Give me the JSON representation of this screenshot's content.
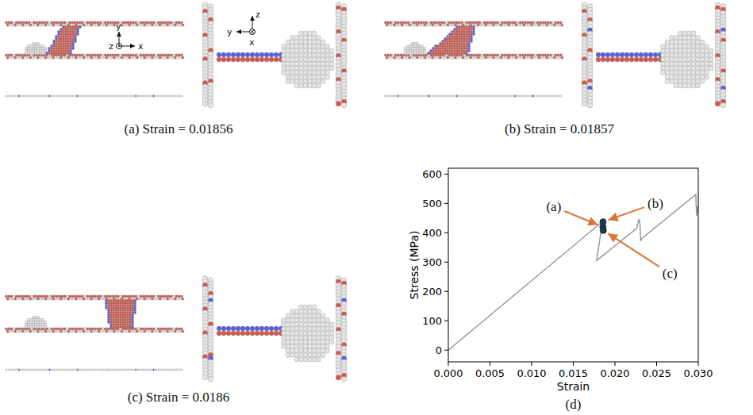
{
  "panels": [
    {
      "caption": "(a) Strain = 0.01856"
    },
    {
      "caption": "(b) Strain = 0.01857"
    },
    {
      "caption": "(c) Strain = 0.0186"
    }
  ],
  "axis_triads": {
    "left": {
      "up": "y",
      "out": "z",
      "right": "x"
    },
    "right": {
      "up": "z",
      "left": "y",
      "in": "x"
    }
  },
  "chart_data": {
    "type": "line",
    "caption": "(d)",
    "x_label": "Strain",
    "y_label": "Stress (MPa)",
    "x": [
      0,
      0.0185,
      0.0178,
      0.0226,
      0.0229,
      0.023,
      0.0231,
      0.0232,
      0.0297,
      0.0298,
      0.0299,
      0.03
    ],
    "series": [
      {
        "color": "#999999",
        "values": [
          0,
          438,
          305,
          415,
          448,
          430,
          372,
          380,
          530,
          458,
          490,
          470
        ]
      }
    ],
    "xlim": [
      0,
      0.03
    ],
    "ylim": [
      -40,
      620
    ],
    "xticks": [
      {
        "value": 0,
        "label": "0.000"
      },
      0.005,
      {
        "value": 0.01,
        "label": "0.010"
      },
      0.015,
      {
        "value": 0.02,
        "label": "0.020"
      },
      0.025,
      {
        "value": 0.03,
        "label": "0.030"
      }
    ],
    "yticks": [
      0,
      100,
      200,
      300,
      400,
      500,
      600
    ],
    "annotations": [
      {
        "text": "(a)",
        "x": 0.01856,
        "y": 420
      },
      {
        "text": "(b)",
        "x": 0.01857,
        "y": 437
      },
      {
        "text": "(c)",
        "x": 0.0186,
        "y": 408
      }
    ]
  }
}
